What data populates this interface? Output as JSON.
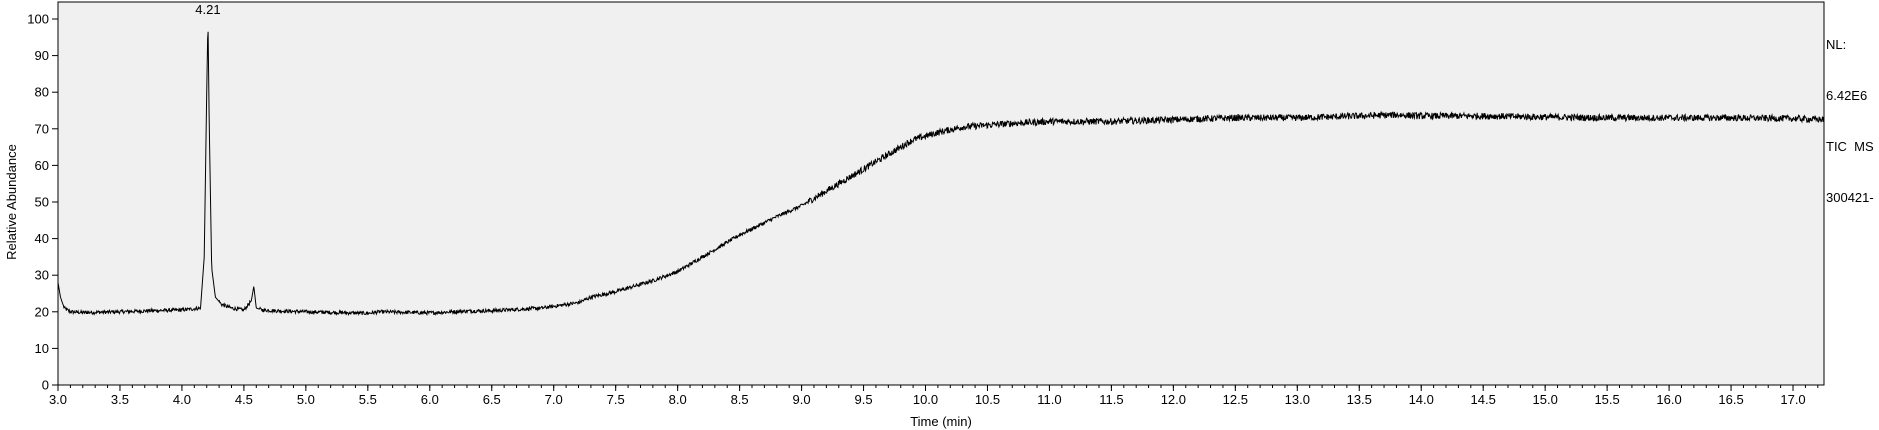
{
  "chart_data": {
    "type": "line",
    "title": "",
    "xlabel": "Time (min)",
    "ylabel": "Relative Abundance",
    "xlim": [
      3.0,
      17.25
    ],
    "ylim": [
      0,
      100
    ],
    "grid": false,
    "x_ticks": [
      "3.0",
      "3.5",
      "4.0",
      "4.5",
      "5.0",
      "5.5",
      "6.0",
      "6.5",
      "7.0",
      "7.5",
      "8.0",
      "8.5",
      "9.0",
      "9.5",
      "10.0",
      "10.5",
      "11.0",
      "11.5",
      "12.0",
      "12.5",
      "13.0",
      "13.5",
      "14.0",
      "14.5",
      "15.0",
      "15.5",
      "16.0",
      "16.5",
      "17.0"
    ],
    "y_ticks": [
      "0",
      "10",
      "20",
      "30",
      "40",
      "50",
      "60",
      "70",
      "80",
      "90",
      "100"
    ],
    "series": [
      {
        "x": [
          3.0,
          3.02,
          3.05,
          3.1,
          3.2,
          3.5,
          3.75,
          4.0,
          4.15,
          4.18,
          4.2,
          4.21,
          4.22,
          4.24,
          4.27,
          4.32,
          4.4,
          4.5,
          4.56,
          4.58,
          4.6,
          4.65,
          4.75,
          5.0,
          5.5,
          5.6,
          6.0,
          6.3,
          6.5,
          6.9,
          7.0,
          7.2,
          7.3,
          7.5,
          7.8,
          8.0,
          8.2,
          8.5,
          8.8,
          9.0,
          9.3,
          9.5,
          9.7,
          9.9,
          10.1,
          10.3,
          10.5,
          10.7,
          11.0,
          11.5,
          12.0,
          12.5,
          13.0,
          13.5,
          13.8,
          14.0,
          14.5,
          15.0,
          15.5,
          16.0,
          16.5,
          17.0,
          17.25
        ],
        "y": [
          28,
          24,
          21,
          20,
          19.8,
          20,
          20.3,
          20.5,
          21,
          35,
          80,
          100,
          72,
          32,
          24,
          22,
          21,
          20.5,
          23,
          27,
          21,
          20.5,
          20.3,
          20,
          19.6,
          20,
          19.7,
          20.2,
          20.3,
          21,
          21.5,
          22.5,
          24,
          25.5,
          28.5,
          31,
          35,
          41,
          46,
          49,
          55,
          59,
          63,
          67,
          69,
          70.5,
          71,
          71.5,
          72,
          72,
          72.5,
          73,
          73,
          73.5,
          73.8,
          73.5,
          73.5,
          73.2,
          73,
          73,
          73,
          72.8,
          72.5
        ]
      }
    ],
    "annotations": [
      {
        "text": "4.21",
        "x": 4.21,
        "y": 100
      }
    ]
  },
  "side_info": [
    "NL:",
    "6.42E6",
    "TIC  MS",
    "300421-"
  ]
}
